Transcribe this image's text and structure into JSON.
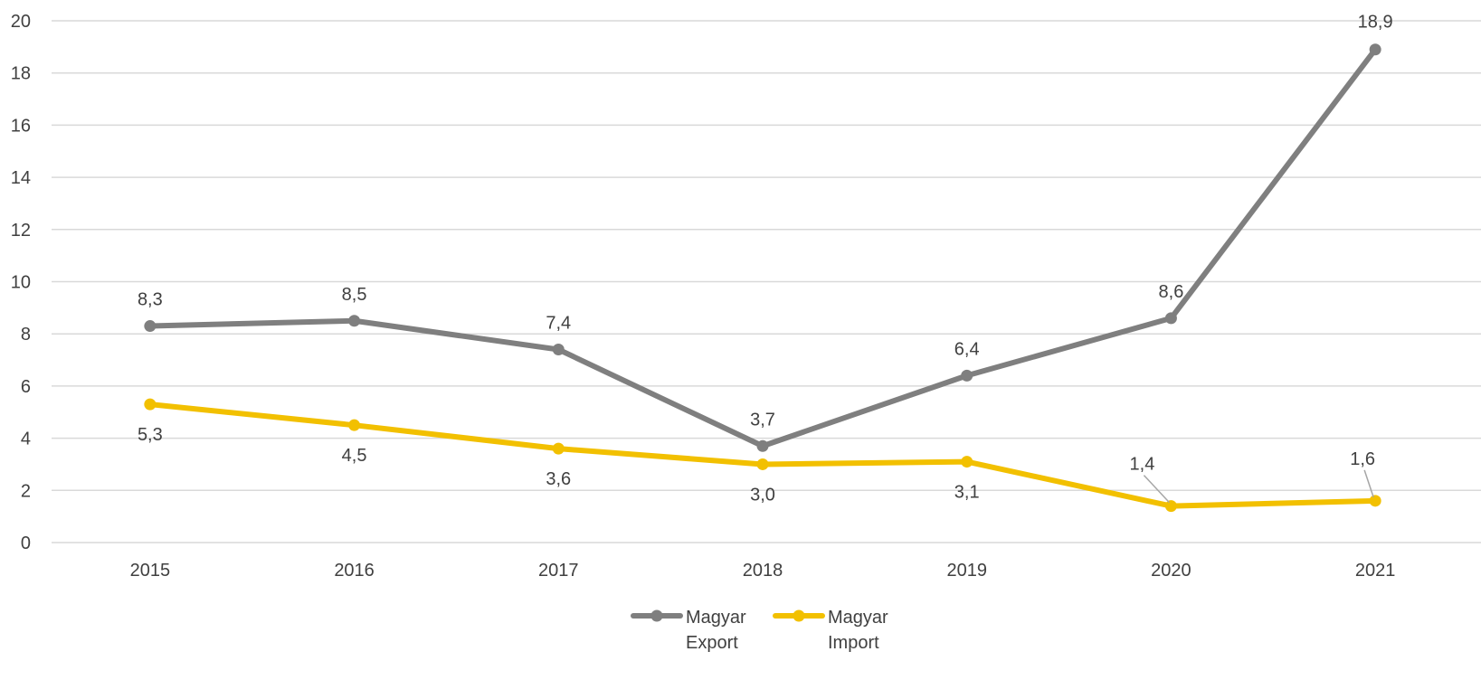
{
  "chart_data": {
    "type": "line",
    "title": "",
    "xlabel": "",
    "ylabel": "",
    "categories": [
      "2015",
      "2016",
      "2017",
      "2018",
      "2019",
      "2020",
      "2021"
    ],
    "ylim": [
      0,
      20
    ],
    "yticks": [
      "0",
      "2",
      "4",
      "6",
      "8",
      "10",
      "12",
      "14",
      "16",
      "18",
      "20"
    ],
    "grid": true,
    "legend_position": "bottom",
    "series": [
      {
        "name": "Magyar Export",
        "legend_lines": [
          "Magyar",
          "Export"
        ],
        "color": "#7f7f7f",
        "marker": "circle",
        "values": [
          8.3,
          8.5,
          7.4,
          3.7,
          6.4,
          8.6,
          18.9
        ],
        "labels": [
          "8,3",
          "8,5",
          "7,4",
          "3,7",
          "6,4",
          "8,6",
          "18,9"
        ],
        "label_position": "above"
      },
      {
        "name": "Magyar Import",
        "legend_lines": [
          "Magyar",
          "Import"
        ],
        "color": "#f2c000",
        "marker": "circle",
        "values": [
          5.3,
          4.5,
          3.6,
          3.0,
          3.1,
          1.4,
          1.6
        ],
        "labels": [
          "5,3",
          "4,5",
          "3,6",
          "3,0",
          "3,1",
          "1,4",
          "1,6"
        ],
        "label_position": "below"
      }
    ]
  }
}
